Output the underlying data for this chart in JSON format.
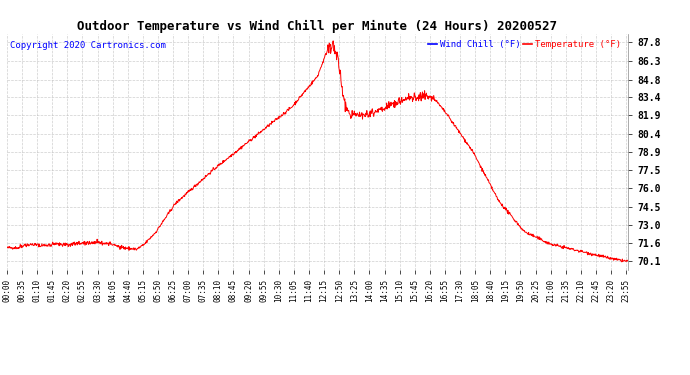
{
  "title": "Outdoor Temperature vs Wind Chill per Minute (24 Hours) 20200527",
  "copyright": "Copyright 2020 Cartronics.com",
  "legend_labels": [
    "Wind Chill (°F)",
    "Temperature (°F)"
  ],
  "legend_colors": [
    "blue",
    "red"
  ],
  "line_color": "red",
  "yticks": [
    70.1,
    71.6,
    73.0,
    74.5,
    76.0,
    77.5,
    78.9,
    80.4,
    81.9,
    83.4,
    84.8,
    86.3,
    87.8
  ],
  "ylim": [
    69.4,
    88.5
  ],
  "background_color": "#ffffff",
  "grid_color": "#bbbbbb",
  "tick_interval_minutes": 35
}
